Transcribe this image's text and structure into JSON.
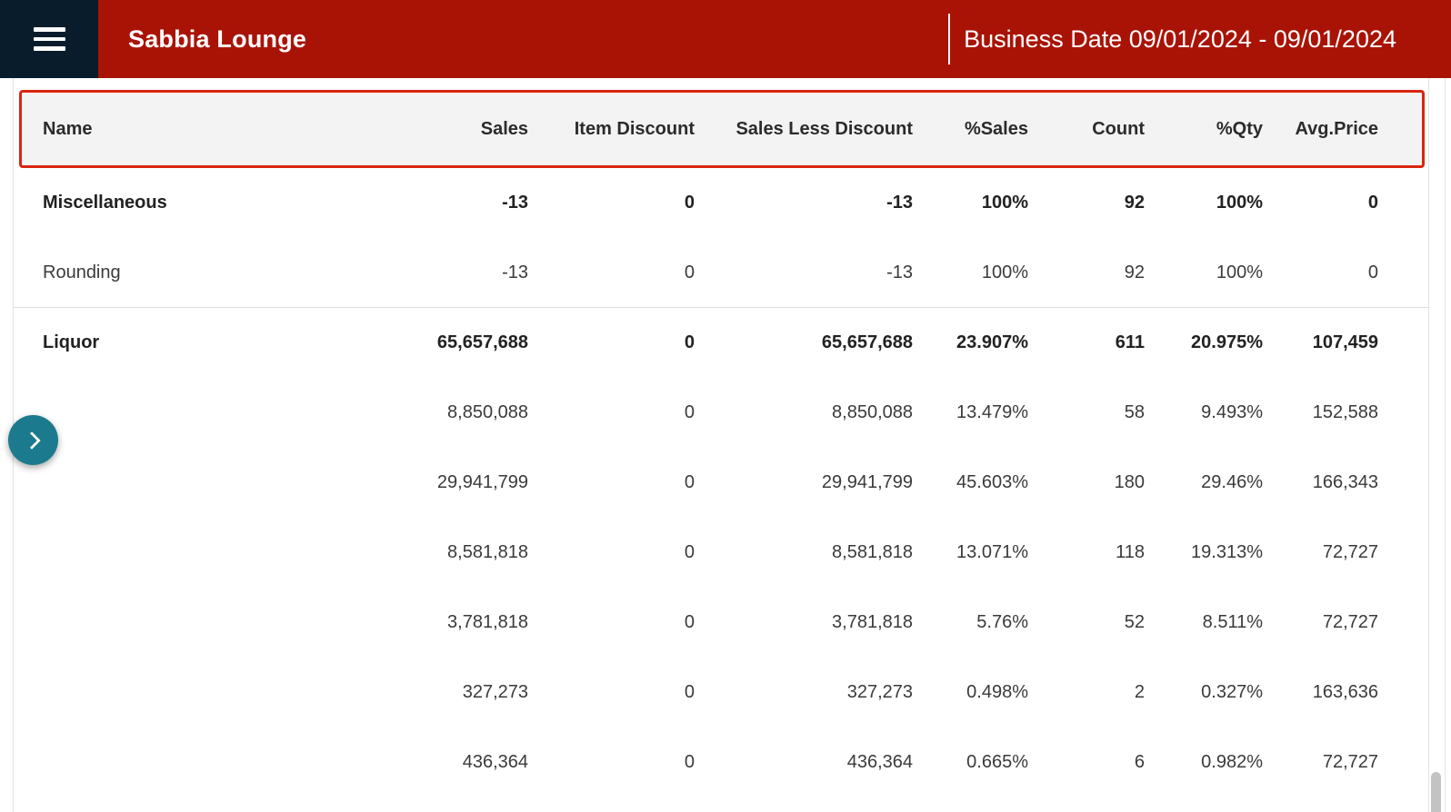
{
  "header": {
    "title": "Sabbia Lounge",
    "business_date": "Business Date 09/01/2024 - 09/01/2024",
    "menu_icon": "hamburger-icon",
    "colors": {
      "bar": "#a91305",
      "menu_bg": "#081c2c",
      "text": "#ffffff"
    }
  },
  "table": {
    "columns": [
      "Name",
      "Sales",
      "Item Discount",
      "Sales Less Discount",
      "%Sales",
      "Count",
      "%Qty",
      "Avg.Price"
    ],
    "header_outline_color": "#d92511",
    "rows": [
      {
        "name": "Miscellaneous",
        "bold": true,
        "divider_after": false,
        "values": [
          "-13",
          "0",
          "-13",
          "100%",
          "92",
          "100%",
          "0"
        ]
      },
      {
        "name": "Rounding",
        "bold": false,
        "divider_after": true,
        "values": [
          "-13",
          "0",
          "-13",
          "100%",
          "92",
          "100%",
          "0"
        ]
      },
      {
        "name": "Liquor",
        "bold": true,
        "divider_after": false,
        "values": [
          "65,657,688",
          "0",
          "65,657,688",
          "23.907%",
          "611",
          "20.975%",
          "107,459"
        ]
      },
      {
        "name": "",
        "bold": false,
        "divider_after": false,
        "values": [
          "8,850,088",
          "0",
          "8,850,088",
          "13.479%",
          "58",
          "9.493%",
          "152,588"
        ]
      },
      {
        "name": "",
        "bold": false,
        "divider_after": false,
        "values": [
          "29,941,799",
          "0",
          "29,941,799",
          "45.603%",
          "180",
          "29.46%",
          "166,343"
        ]
      },
      {
        "name": "",
        "bold": false,
        "divider_after": false,
        "values": [
          "8,581,818",
          "0",
          "8,581,818",
          "13.071%",
          "118",
          "19.313%",
          "72,727"
        ]
      },
      {
        "name": "",
        "bold": false,
        "divider_after": false,
        "values": [
          "3,781,818",
          "0",
          "3,781,818",
          "5.76%",
          "52",
          "8.511%",
          "72,727"
        ]
      },
      {
        "name": "",
        "bold": false,
        "divider_after": false,
        "values": [
          "327,273",
          "0",
          "327,273",
          "0.498%",
          "2",
          "0.327%",
          "163,636"
        ]
      },
      {
        "name": "",
        "bold": false,
        "divider_after": false,
        "values": [
          "436,364",
          "0",
          "436,364",
          "0.665%",
          "6",
          "0.982%",
          "72,727"
        ]
      }
    ]
  },
  "expand_button": {
    "icon": "chevron-right-icon",
    "color": "#1b7a8e"
  }
}
